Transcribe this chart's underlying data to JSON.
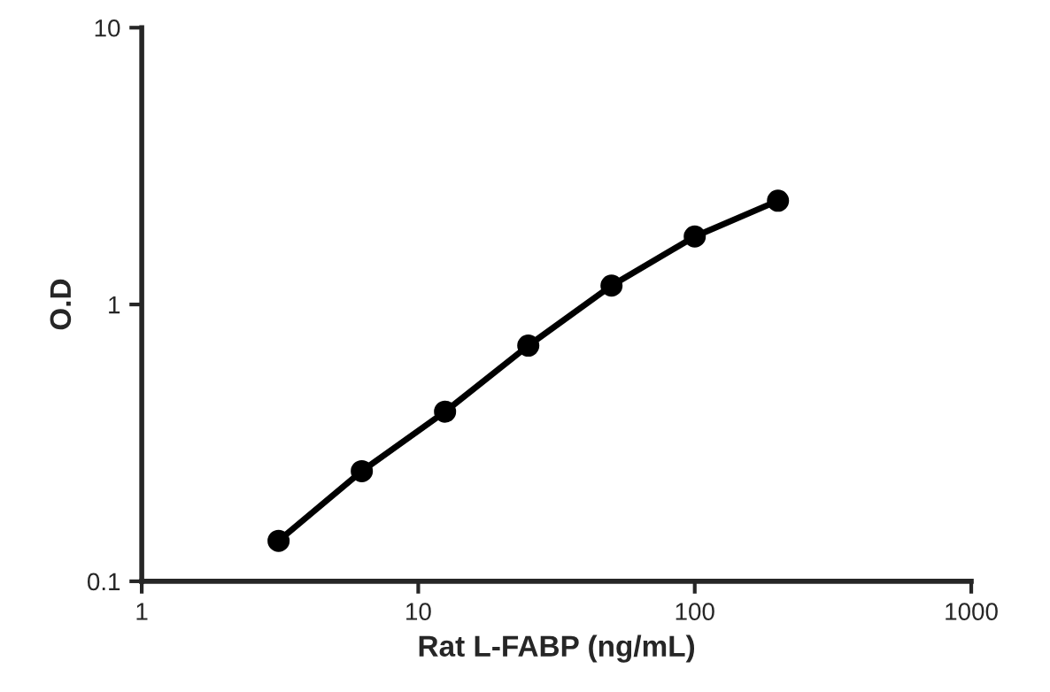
{
  "chart_data": {
    "type": "line",
    "xlabel": "Rat L-FABP (ng/mL)",
    "ylabel": "O.D",
    "x": [
      3.125,
      6.25,
      12.5,
      25,
      50,
      100,
      200
    ],
    "series": [
      {
        "color": "#000000",
        "values": [
          0.14,
          0.25,
          0.41,
          0.71,
          1.17,
          1.76,
          2.37
        ]
      }
    ],
    "log": "xy",
    "xlim": [
      1,
      1000
    ],
    "ylim": [
      0.1,
      10
    ],
    "xticks": [
      1,
      10,
      100,
      1000
    ],
    "yticks": [
      0.1,
      1,
      10
    ],
    "marker": "circle",
    "line_style": "solid",
    "grid": false,
    "legend": false
  }
}
